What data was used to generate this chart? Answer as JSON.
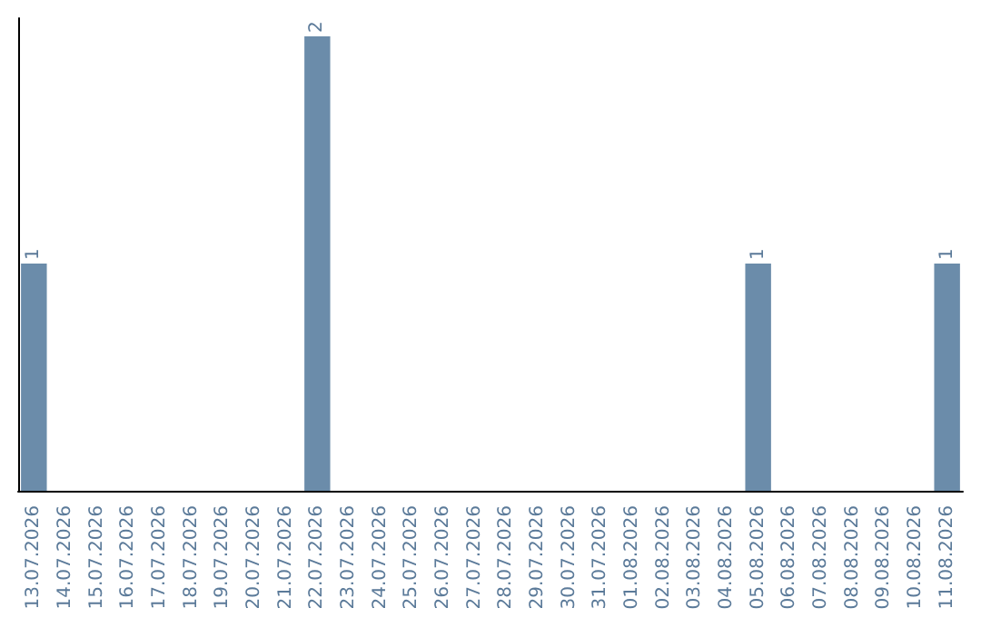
{
  "chart_data": {
    "type": "bar",
    "categories": [
      "13.07.2026",
      "14.07.2026",
      "15.07.2026",
      "16.07.2026",
      "17.07.2026",
      "18.07.2026",
      "19.07.2026",
      "20.07.2026",
      "21.07.2026",
      "22.07.2026",
      "23.07.2026",
      "24.07.2026",
      "25.07.2026",
      "26.07.2026",
      "27.07.2026",
      "28.07.2026",
      "29.07.2026",
      "30.07.2026",
      "31.07.2026",
      "01.08.2026",
      "02.08.2026",
      "03.08.2026",
      "04.08.2026",
      "05.08.2026",
      "06.08.2026",
      "07.08.2026",
      "08.08.2026",
      "09.08.2026",
      "10.08.2026",
      "11.08.2026"
    ],
    "values": [
      1,
      0,
      0,
      0,
      0,
      0,
      0,
      0,
      0,
      2,
      0,
      0,
      0,
      0,
      0,
      0,
      0,
      0,
      0,
      0,
      0,
      0,
      0,
      1,
      0,
      0,
      0,
      0,
      0,
      1
    ],
    "value_labels": [
      "1",
      null,
      null,
      null,
      null,
      null,
      null,
      null,
      null,
      "2",
      null,
      null,
      null,
      null,
      null,
      null,
      null,
      null,
      null,
      null,
      null,
      null,
      null,
      "1",
      null,
      null,
      null,
      null,
      null,
      "1"
    ],
    "color": "#6b8caa",
    "tick_labels": "x"
  }
}
